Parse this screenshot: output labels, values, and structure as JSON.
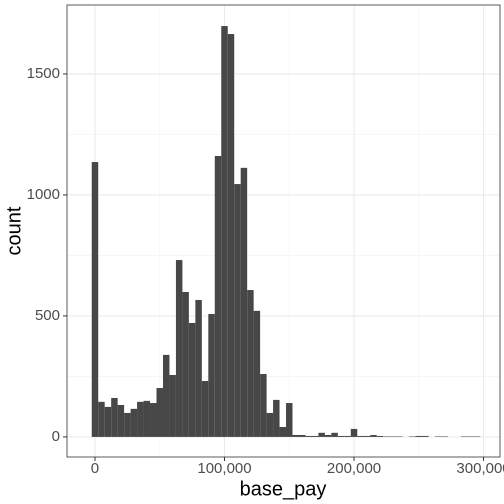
{
  "chart_data": {
    "type": "histogram",
    "x_label": "base_pay",
    "y_label": "count",
    "bins": [
      -2500,
      2500,
      7500,
      12500,
      17500,
      22500,
      27500,
      32500,
      37500,
      42500,
      47500,
      52500,
      57500,
      62500,
      67500,
      72500,
      77500,
      82500,
      87500,
      92500,
      97500,
      102500,
      107500,
      112500,
      117500,
      122500,
      127500,
      132500,
      137500,
      142500,
      147500,
      152500,
      157500,
      162500,
      167500,
      172500,
      177500,
      182500,
      187500,
      192500,
      197500,
      202500,
      207500,
      212500,
      217500,
      222500,
      227500,
      232500,
      237500,
      242500,
      247500,
      252500,
      257500,
      262500,
      267500,
      272500,
      277500,
      282500,
      287500,
      292500,
      297500
    ],
    "values": [
      1136,
      145,
      124,
      161,
      132,
      99,
      116,
      145,
      149,
      140,
      202,
      339,
      256,
      731,
      599,
      471,
      566,
      231,
      508,
      1161,
      1698,
      1665,
      1045,
      1112,
      607,
      521,
      260,
      99,
      153,
      41,
      140,
      8,
      8,
      4,
      4,
      17,
      8,
      17,
      4,
      4,
      33,
      4,
      4,
      8,
      4,
      2,
      2,
      2,
      0,
      2,
      4,
      4,
      0,
      2,
      2,
      0,
      0,
      2,
      2,
      2
    ],
    "color": "#474747",
    "xlim": [
      -21600,
      312700
    ],
    "ylim": [
      -83,
      1785
    ],
    "xticks": [
      {
        "value": 0,
        "label": "0"
      },
      {
        "value": 100000,
        "label": "100,000"
      },
      {
        "value": 200000,
        "label": "200,000"
      },
      {
        "value": 300000,
        "label": "300,000"
      }
    ],
    "yticks": [
      0,
      500,
      1000,
      1500
    ],
    "minor_xticks": [
      50000,
      150000,
      250000
    ],
    "minor_yticks": [
      250,
      750,
      1250
    ],
    "grid": true
  }
}
